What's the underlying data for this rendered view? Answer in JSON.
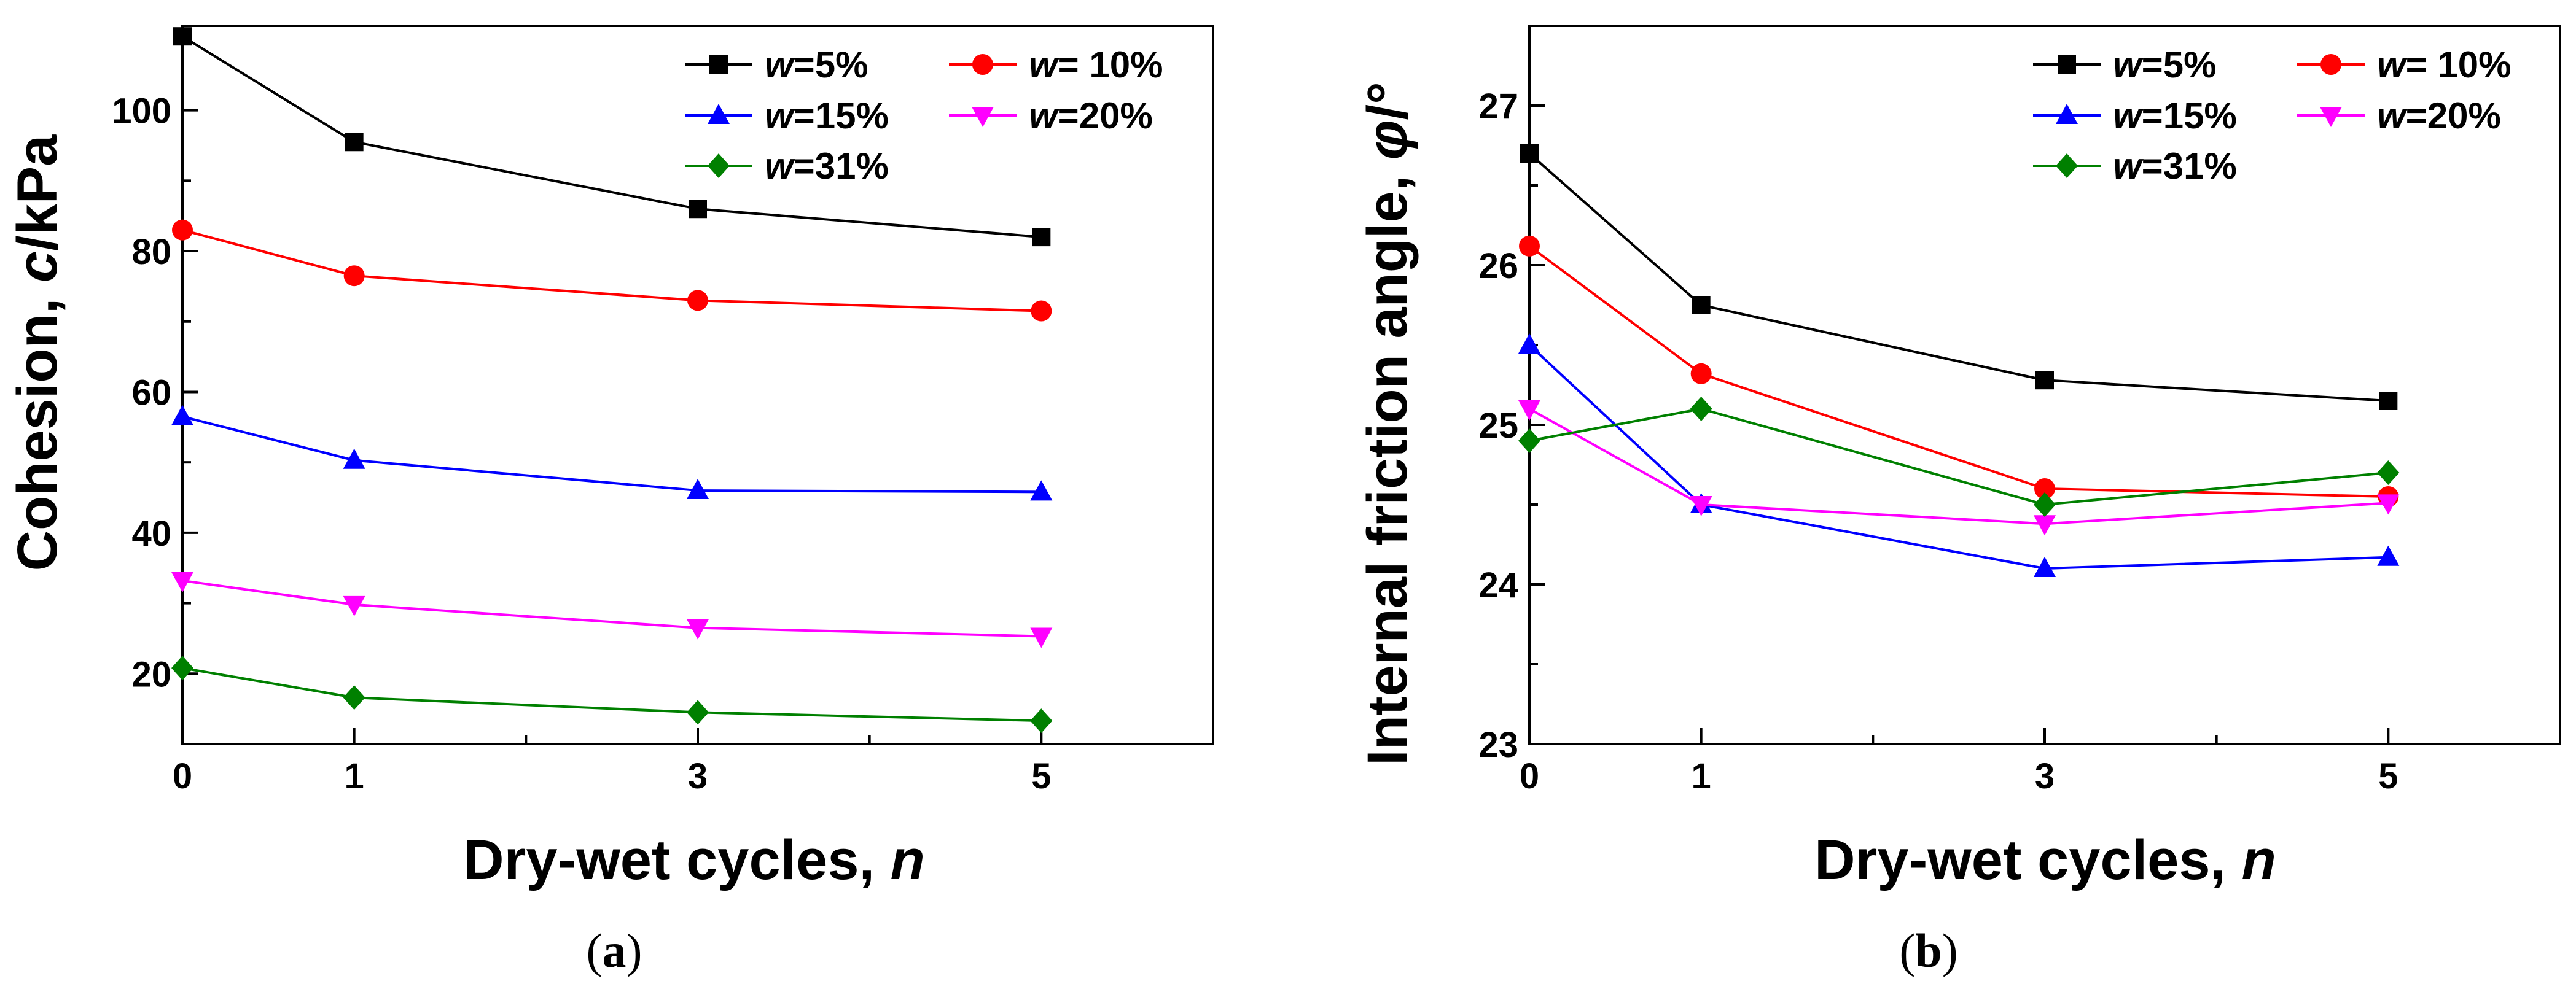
{
  "chart_data": [
    {
      "type": "line",
      "caption": {
        "open": "(",
        "letter": "a",
        "close": ")"
      },
      "xlabel": {
        "text": "Dry-wet cycles, ",
        "var": "n"
      },
      "ylabel": {
        "text": "Cohesion, ",
        "var": "c",
        "suffix": "/kPa"
      },
      "xlim": [
        0,
        6
      ],
      "ylim": [
        10,
        112
      ],
      "x_ticks": [
        0,
        1,
        3,
        5
      ],
      "y_ticks": [
        20,
        40,
        60,
        80,
        100
      ],
      "x_minor": [
        2,
        4
      ],
      "x": [
        0,
        1,
        3,
        5
      ],
      "series": [
        {
          "label_var": "w",
          "label_rest": "=5%",
          "color": "#000000",
          "marker": "square",
          "values": [
            110.5,
            95.5,
            86.0,
            82.0
          ]
        },
        {
          "label_var": "w",
          "label_rest": "= 10%",
          "color": "#ff0000",
          "marker": "circle",
          "values": [
            83.0,
            76.5,
            73.0,
            71.5
          ]
        },
        {
          "label_var": "w",
          "label_rest": "=15%",
          "color": "#0000ff",
          "marker": "triangle-up",
          "values": [
            56.5,
            50.3,
            46.0,
            45.8
          ]
        },
        {
          "label_var": "w",
          "label_rest": "=20%",
          "color": "#ff00ff",
          "marker": "triangle-down",
          "values": [
            33.2,
            29.8,
            26.5,
            25.3
          ]
        },
        {
          "label_var": "w",
          "label_rest": "=31%",
          "color": "#008000",
          "marker": "diamond",
          "values": [
            20.8,
            16.6,
            14.5,
            13.3
          ]
        }
      ]
    },
    {
      "type": "line",
      "caption": {
        "open": "(",
        "letter": "b",
        "close": ")"
      },
      "xlabel": {
        "text": "Dry-wet cycles, ",
        "var": "n"
      },
      "ylabel": {
        "text": "Internal friction angle, ",
        "var": "φ",
        "suffix": "/°"
      },
      "xlim": [
        0,
        6
      ],
      "ylim": [
        23,
        27.5
      ],
      "x_ticks": [
        0,
        1,
        3,
        5
      ],
      "y_ticks": [
        23,
        24,
        25,
        26,
        27
      ],
      "x_minor": [
        2,
        4
      ],
      "x": [
        0,
        1,
        3,
        5
      ],
      "series": [
        {
          "label_var": "w",
          "label_rest": "=5%",
          "color": "#000000",
          "marker": "square",
          "values": [
            26.7,
            25.75,
            25.28,
            25.15
          ]
        },
        {
          "label_var": "w",
          "label_rest": "= 10%",
          "color": "#ff0000",
          "marker": "circle",
          "values": [
            26.12,
            25.32,
            24.6,
            24.55
          ]
        },
        {
          "label_var": "w",
          "label_rest": "=15%",
          "color": "#0000ff",
          "marker": "triangle-up",
          "values": [
            25.5,
            24.5,
            24.1,
            24.17
          ]
        },
        {
          "label_var": "w",
          "label_rest": "=20%",
          "color": "#ff00ff",
          "marker": "triangle-down",
          "values": [
            25.1,
            24.5,
            24.38,
            24.51
          ]
        },
        {
          "label_var": "w",
          "label_rest": "=31%",
          "color": "#008000",
          "marker": "diamond",
          "values": [
            24.9,
            25.1,
            24.5,
            24.7
          ]
        }
      ]
    }
  ]
}
